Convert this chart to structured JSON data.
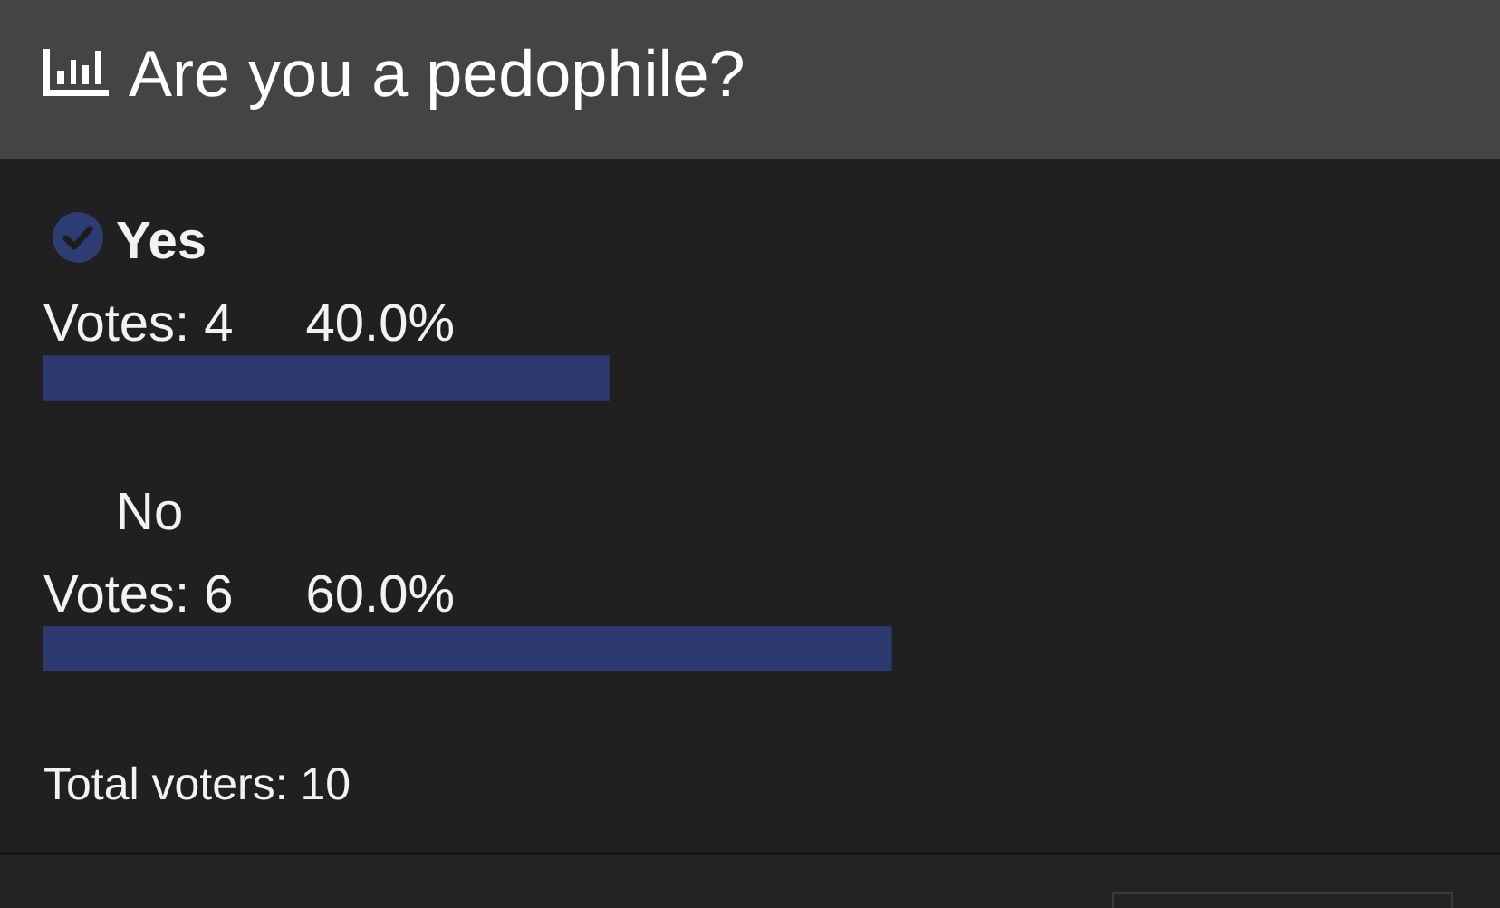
{
  "chart_data": {
    "type": "bar",
    "orientation": "horizontal",
    "title": "Are you a pedophile?",
    "categories": [
      "Yes",
      "No"
    ],
    "values": [
      40,
      60
    ],
    "value_labels": [
      "40.0%",
      "60.0%"
    ],
    "color": "#2c3a70",
    "tick_labels": false,
    "annotations": [
      "Votes: 4",
      "Votes: 6",
      "Total voters: 10"
    ]
  }
}
